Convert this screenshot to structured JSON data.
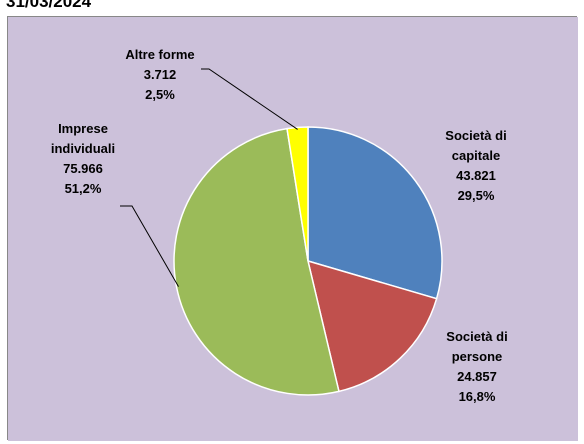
{
  "header": {
    "title": "31/03/2024"
  },
  "chart_data": {
    "type": "pie",
    "title": "",
    "slices": [
      {
        "name_lines": [
          "Società di",
          "capitale"
        ],
        "value": "43.821",
        "value_num": 43821,
        "percent": "29,5%",
        "color": "#4F81BD"
      },
      {
        "name_lines": [
          "Società di",
          "persone"
        ],
        "value": "24.857",
        "value_num": 24857,
        "percent": "16,8%",
        "color": "#C0504D"
      },
      {
        "name_lines": [
          "Imprese",
          "individuali"
        ],
        "value": "75.966",
        "value_num": 75966,
        "percent": "51,2%",
        "color": "#9BBB59"
      },
      {
        "name_lines": [
          "Altre forme"
        ],
        "value": "3.712",
        "value_num": 3712,
        "percent": "2,5%",
        "color": "#FFFF00"
      }
    ],
    "start": "12 o'clock",
    "direction": "clockwise",
    "plot_background": "#CCC1DA",
    "legend": "none"
  }
}
